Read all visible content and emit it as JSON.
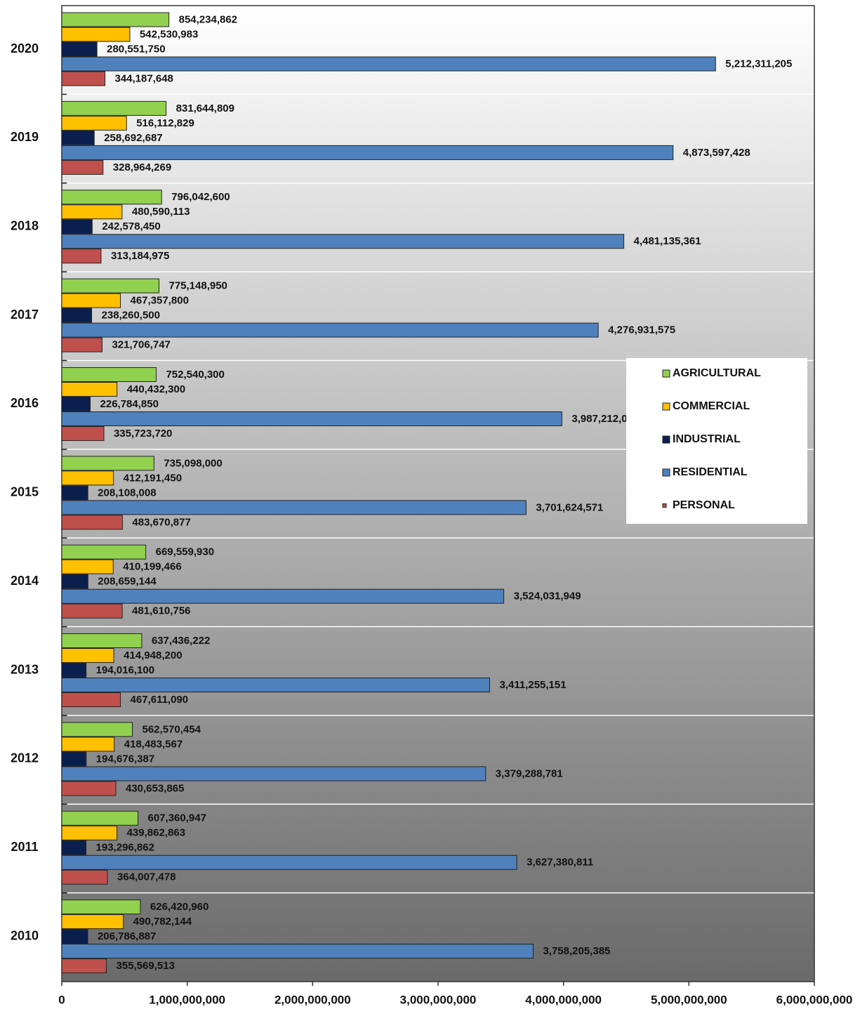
{
  "chart_data": {
    "type": "hbar",
    "categories": [
      "2020",
      "2019",
      "2018",
      "2017",
      "2016",
      "2015",
      "2014",
      "2013",
      "2012",
      "2011",
      "2010"
    ],
    "series": [
      {
        "name": "AGRICULTURAL",
        "color": "#92d050",
        "values": [
          854234862,
          831644809,
          796042600,
          775148950,
          752540300,
          735098000,
          669559930,
          637436222,
          562570454,
          607360947,
          626420960
        ],
        "value_labels": [
          "854,234,862",
          "831,644,809",
          "796,042,600",
          "775,148,950",
          "752,540,300",
          "735,098,000",
          "669,559,930",
          "637,436,222",
          "562,570,454",
          "607,360,947",
          "626,420,960"
        ]
      },
      {
        "name": "COMMERCIAL",
        "color": "#ffc000",
        "values": [
          542530983,
          516112829,
          480590113,
          467357800,
          440432300,
          412191450,
          410199466,
          414948200,
          418483567,
          439862863,
          490782144
        ],
        "value_labels": [
          "542,530,983",
          "516,112,829",
          "480,590,113",
          "467,357,800",
          "440,432,300",
          "412,191,450",
          "410,199,466",
          "414,948,200",
          "418,483,567",
          "439,862,863",
          "490,782,144"
        ]
      },
      {
        "name": "INDUSTRIAL",
        "color": "#0b1f4f",
        "values": [
          280551750,
          258692687,
          242578450,
          238260500,
          226784850,
          208108008,
          208659144,
          194016100,
          194676387,
          193296862,
          206786887
        ],
        "value_labels": [
          "280,551,750",
          "258,692,687",
          "242,578,450",
          "238,260,500",
          "226,784,850",
          "208,108,008",
          "208,659,144",
          "194,016,100",
          "194,676,387",
          "193,296,862",
          "206,786,887"
        ]
      },
      {
        "name": "RESIDENTIAL",
        "color": "#4f81bd",
        "values": [
          5212311205,
          4873597428,
          4481135361,
          4276931575,
          3987212000,
          3701624571,
          3524031949,
          3411255151,
          3379288781,
          3627380811,
          3758205385
        ],
        "value_labels": [
          "5,212,311,205",
          "4,873,597,428",
          "4,481,135,361",
          "4,276,931,575",
          "3,987,212,000",
          "3,701,624,571",
          "3,524,031,949",
          "3,411,255,151",
          "3,379,288,781",
          "3,627,380,811",
          "3,758,205,385"
        ]
      },
      {
        "name": "PERSONAL",
        "color": "#c0504d",
        "values": [
          344187648,
          328964269,
          313184975,
          321706747,
          335723720,
          483670877,
          481610756,
          467611090,
          430653865,
          364007478,
          355569513
        ],
        "value_labels": [
          "344,187,648",
          "328,964,269",
          "313,184,975",
          "321,706,747",
          "335,723,720",
          "483,670,877",
          "481,610,756",
          "467,611,090",
          "430,653,865",
          "364,007,478",
          "355,569,513"
        ]
      }
    ],
    "xlim": [
      0,
      6000000000
    ],
    "xticks": [
      0,
      {
        "value": 1000000000,
        "label": "1,000,000,000"
      },
      {
        "value": 2000000000,
        "label": "2,000,000,000"
      },
      {
        "value": 3000000000,
        "label": "3,000,000,000"
      },
      {
        "value": 4000000000,
        "label": "4,000,000,000"
      },
      {
        "value": 5000000000,
        "label": "5,000,000,000"
      },
      {
        "value": 6000000000,
        "label": "6,000,000,000"
      }
    ],
    "legend": "right"
  }
}
